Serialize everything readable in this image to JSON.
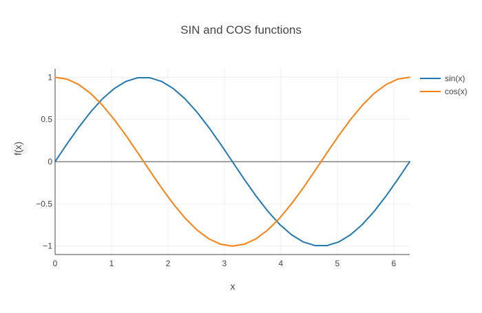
{
  "chart_data": {
    "type": "line",
    "title": "SIN and COS functions",
    "xlabel": "x",
    "ylabel": "f(x)",
    "xlim": [
      0,
      6.283185307179586
    ],
    "ylim": [
      -1.1,
      1.1
    ],
    "xticks": [
      0,
      1,
      2,
      3,
      4,
      5,
      6
    ],
    "yticks": [
      -1,
      -0.5,
      0,
      0.5,
      1
    ],
    "xtick_labels": [
      "0",
      "1",
      "2",
      "3",
      "4",
      "5",
      "6"
    ],
    "ytick_labels": [
      "−1",
      "−0.5",
      "0",
      "0.5",
      "1"
    ],
    "grid": true,
    "legend_position": "top-right",
    "series": [
      {
        "name": "sin(x)",
        "color": "#1f77b4",
        "x": [
          0,
          0.2094,
          0.4189,
          0.6283,
          0.8378,
          1.0472,
          1.2566,
          1.4661,
          1.6755,
          1.885,
          2.0944,
          2.3038,
          2.5133,
          2.7227,
          2.9322,
          3.1416,
          3.351,
          3.5605,
          3.7699,
          3.9794,
          4.1888,
          4.3982,
          4.6077,
          4.8171,
          5.0265,
          5.236,
          5.4454,
          5.6549,
          5.8643,
          6.0737,
          6.2832
        ],
        "y": [
          0,
          0.2079,
          0.4067,
          0.5878,
          0.7431,
          0.866,
          0.9511,
          0.9945,
          0.9945,
          0.9511,
          0.866,
          0.7431,
          0.5878,
          0.4067,
          0.2079,
          0,
          -0.2079,
          -0.4067,
          -0.5878,
          -0.7431,
          -0.866,
          -0.9511,
          -0.9945,
          -0.9945,
          -0.9511,
          -0.866,
          -0.7431,
          -0.5878,
          -0.4067,
          -0.2079,
          0
        ]
      },
      {
        "name": "cos(x)",
        "color": "#ff7f0e",
        "x": [
          0,
          0.2094,
          0.4189,
          0.6283,
          0.8378,
          1.0472,
          1.2566,
          1.4661,
          1.6755,
          1.885,
          2.0944,
          2.3038,
          2.5133,
          2.7227,
          2.9322,
          3.1416,
          3.351,
          3.5605,
          3.7699,
          3.9794,
          4.1888,
          4.3982,
          4.6077,
          4.8171,
          5.0265,
          5.236,
          5.4454,
          5.6549,
          5.8643,
          6.0737,
          6.2832
        ],
        "y": [
          1,
          0.9781,
          0.9135,
          0.809,
          0.6691,
          0.5,
          0.309,
          0.1045,
          -0.1045,
          -0.309,
          -0.5,
          -0.6691,
          -0.809,
          -0.9135,
          -0.9781,
          -1,
          -0.9781,
          -0.9135,
          -0.809,
          -0.6691,
          -0.5,
          -0.309,
          -0.1045,
          0.1045,
          0.309,
          0.5,
          0.6691,
          0.809,
          0.9135,
          0.9781,
          1
        ]
      }
    ]
  }
}
